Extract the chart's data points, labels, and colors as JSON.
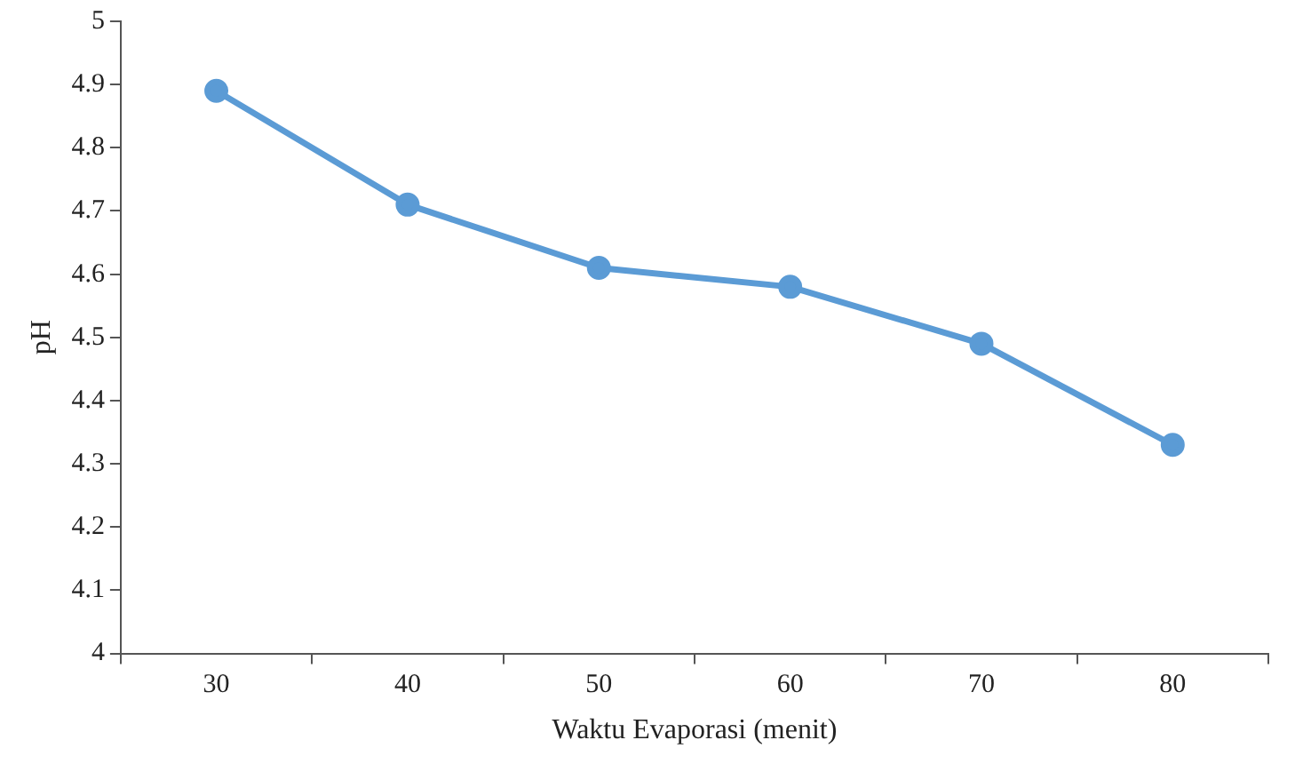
{
  "chart_data": {
    "type": "line",
    "xlabel": "Waktu Evaporasi (menit)",
    "ylabel": "pH",
    "categories": [
      "30",
      "40",
      "50",
      "60",
      "70",
      "80"
    ],
    "series": [
      {
        "color": "#5b9bd5",
        "values": [
          4.89,
          4.71,
          4.61,
          4.58,
          4.49,
          4.33
        ]
      }
    ],
    "ylim": [
      4,
      5
    ],
    "yticks": [
      4,
      4.1,
      4.2,
      4.3,
      4.4,
      4.5,
      4.6,
      4.7,
      4.8,
      4.9,
      5
    ],
    "grid": false,
    "legend": false,
    "marker": "circle",
    "line_style": "solid"
  }
}
